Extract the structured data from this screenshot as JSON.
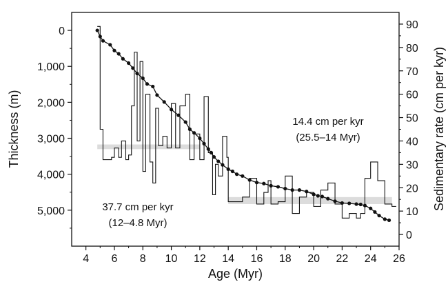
{
  "chart_data": {
    "type": "line",
    "xlabel": "Age (Myr)",
    "ylabel_left": "Thickness (m)",
    "ylabel_right": "Sedimentary rate (cm per kyr)",
    "xlim": [
      3,
      26
    ],
    "ylim_left": [
      6000,
      -500
    ],
    "ylim_right": [
      -5,
      95
    ],
    "x_ticks": [
      4,
      6,
      8,
      10,
      12,
      14,
      16,
      18,
      20,
      22,
      24,
      26
    ],
    "x_tick_labels": [
      "4",
      "6",
      "8",
      "10",
      "12",
      "14",
      "16",
      "18",
      "20",
      "22",
      "24",
      "26"
    ],
    "y_left_ticks": [
      0,
      1000,
      2000,
      3000,
      4000,
      5000
    ],
    "y_left_tick_labels": [
      "0",
      "1,000",
      "2,000",
      "3,000",
      "4,000",
      "5,000"
    ],
    "y_right_ticks": [
      0,
      10,
      20,
      30,
      40,
      50,
      60,
      70,
      80,
      90
    ],
    "y_right_tick_labels": [
      "0",
      "10",
      "20",
      "30",
      "40",
      "50",
      "60",
      "70",
      "80",
      "90"
    ],
    "annotations": [
      {
        "line1": "14.4 cm per kyr",
        "line2": "(25.5–14 Myr)"
      },
      {
        "line1": "37.7 cm per kyr",
        "line2": "(12–4.8 Myr)"
      }
    ],
    "bands": [
      {
        "x": [
          4.8,
          12
        ],
        "y_rate": [
          36.5,
          38.5
        ]
      },
      {
        "x": [
          14,
          25.5
        ],
        "y_rate": [
          13,
          16
        ]
      }
    ],
    "series": [
      {
        "axis": "left",
        "style": "line-markers",
        "x": [
          4.8,
          5.0,
          5.2,
          5.7,
          6.0,
          6.3,
          6.6,
          7.0,
          7.3,
          7.6,
          8.0,
          8.3,
          8.7,
          9.0,
          9.5,
          10.0,
          10.5,
          11.0,
          11.3,
          11.6,
          12.0,
          12.3,
          12.6,
          12.8,
          13.0,
          13.3,
          13.6,
          14.0,
          14.3,
          14.6,
          15.0,
          15.5,
          16.0,
          16.5,
          17.0,
          17.5,
          18.0,
          18.5,
          19.0,
          19.5,
          20.0,
          20.3,
          20.6,
          21.0,
          21.5,
          22.0,
          22.5,
          23.0,
          23.3,
          23.6,
          24.0,
          24.3,
          24.6,
          25.0,
          25.3
        ],
        "y": [
          0,
          170,
          290,
          400,
          560,
          650,
          790,
          910,
          1050,
          1200,
          1330,
          1490,
          1560,
          1800,
          1990,
          2200,
          2360,
          2550,
          2750,
          2850,
          3000,
          3150,
          3300,
          3400,
          3520,
          3640,
          3740,
          3860,
          3920,
          4000,
          4050,
          4160,
          4230,
          4260,
          4320,
          4350,
          4400,
          4440,
          4440,
          4480,
          4560,
          4600,
          4620,
          4680,
          4750,
          4800,
          4810,
          4830,
          4840,
          4870,
          4950,
          5050,
          5150,
          5250,
          5280
        ]
      },
      {
        "axis": "right",
        "style": "step",
        "x": [
          4.8,
          5.0,
          5.2,
          5.5,
          5.8,
          6.0,
          6.3,
          6.5,
          6.8,
          7.0,
          7.2,
          7.4,
          7.6,
          7.8,
          8.0,
          8.2,
          8.5,
          8.7,
          8.9,
          9.1,
          9.4,
          9.7,
          10.0,
          10.3,
          10.6,
          11.0,
          11.3,
          11.6,
          12.0,
          12.3,
          12.6,
          12.9,
          13.1,
          13.3,
          13.6,
          13.9,
          14.0,
          14.5,
          15.0,
          15.5,
          16.0,
          16.5,
          16.8,
          17.0,
          17.5,
          18.0,
          18.5,
          19.0,
          19.5,
          20.0,
          20.5,
          21.0,
          21.5,
          22.0,
          22.5,
          23.0,
          23.3,
          23.6,
          24.0,
          24.5,
          25.0,
          25.5
        ],
        "y": [
          89,
          45,
          32,
          32,
          33,
          37,
          33,
          40,
          32,
          34,
          55,
          78,
          40,
          74,
          27,
          60,
          31,
          22,
          54,
          38,
          42,
          37,
          56,
          37,
          55,
          60,
          32,
          43,
          32,
          59,
          35,
          17,
          30,
          25,
          42,
          33,
          14,
          14,
          16,
          24,
          13,
          18,
          23,
          13,
          14,
          25,
          9,
          16,
          18,
          12,
          19,
          22,
          13,
          7,
          9,
          7,
          9,
          24,
          31,
          23,
          13,
          12
        ]
      }
    ]
  }
}
